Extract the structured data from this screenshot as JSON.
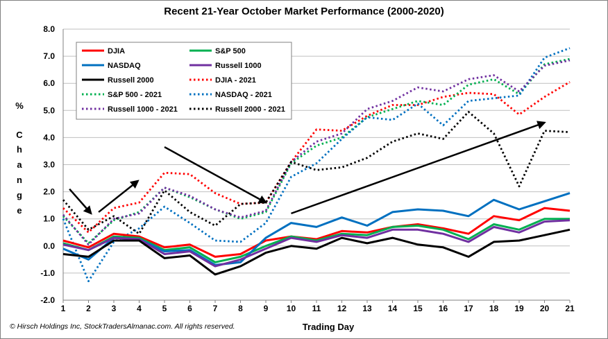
{
  "chart_data": {
    "type": "line",
    "title": "Recent 21-Year October Market Performance (2000-2020)",
    "xlabel": "Trading Day",
    "ylabel_letters": [
      "%",
      "C",
      "h",
      "a",
      "n",
      "g",
      "e"
    ],
    "x": [
      "1",
      "2",
      "3",
      "4",
      "5",
      "6",
      "7",
      "8",
      "9",
      "10",
      "11",
      "12",
      "13",
      "14",
      "15",
      "16",
      "17",
      "18",
      "19",
      "20",
      "21"
    ],
    "ylim": [
      -2.0,
      8.0
    ],
    "yticks": [
      "-2.0",
      "-1.0",
      "0.0",
      "1.0",
      "2.0",
      "3.0",
      "4.0",
      "5.0",
      "6.0",
      "7.0",
      "8.0"
    ],
    "grid": true,
    "legend_position": "top-left",
    "copyright": "© Hirsch Holdings Inc, StockTradersAlmanac.com.  All rights reserved.",
    "series": [
      {
        "name": "DJIA",
        "color": "#ff0000",
        "style": "solid",
        "values": [
          0.2,
          -0.05,
          0.45,
          0.35,
          -0.05,
          0.05,
          -0.4,
          -0.3,
          0.2,
          0.35,
          0.25,
          0.55,
          0.5,
          0.7,
          0.8,
          0.65,
          0.45,
          1.1,
          0.95,
          1.4,
          1.3
        ]
      },
      {
        "name": "S&P 500",
        "color": "#00b050",
        "style": "solid",
        "values": [
          0.1,
          -0.15,
          0.35,
          0.3,
          -0.15,
          -0.05,
          -0.6,
          -0.4,
          0.0,
          0.35,
          0.2,
          0.45,
          0.4,
          0.7,
          0.75,
          0.6,
          0.25,
          0.8,
          0.6,
          1.0,
          1.0
        ]
      },
      {
        "name": "NASDAQ",
        "color": "#0070c0",
        "style": "solid",
        "values": [
          -0.1,
          -0.5,
          0.3,
          0.25,
          -0.2,
          -0.15,
          -0.7,
          -0.6,
          0.3,
          0.85,
          0.7,
          1.05,
          0.75,
          1.25,
          1.35,
          1.3,
          1.1,
          1.7,
          1.35,
          1.65,
          1.95
        ]
      },
      {
        "name": "Russell 1000",
        "color": "#7030a0",
        "style": "solid",
        "values": [
          0.05,
          -0.15,
          0.3,
          0.25,
          -0.3,
          -0.2,
          -0.75,
          -0.5,
          -0.1,
          0.3,
          0.15,
          0.4,
          0.3,
          0.6,
          0.6,
          0.45,
          0.15,
          0.7,
          0.5,
          0.9,
          0.95
        ]
      },
      {
        "name": "Russell 2000",
        "color": "#000000",
        "style": "solid",
        "values": [
          -0.3,
          -0.4,
          0.2,
          0.2,
          -0.45,
          -0.35,
          -1.05,
          -0.75,
          -0.25,
          0.0,
          -0.1,
          0.3,
          0.1,
          0.3,
          0.05,
          -0.05,
          -0.4,
          0.15,
          0.2,
          0.4,
          0.6
        ]
      },
      {
        "name": "DJIA - 2021",
        "color": "#ff0000",
        "style": "dotted",
        "values": [
          1.4,
          0.5,
          1.4,
          1.6,
          2.7,
          2.65,
          1.95,
          1.55,
          1.6,
          3.1,
          4.3,
          4.25,
          4.8,
          5.2,
          5.2,
          5.5,
          5.65,
          5.6,
          4.85,
          5.5,
          6.05
        ]
      },
      {
        "name": "S&P 500 - 2021",
        "color": "#00b050",
        "style": "dotted",
        "values": [
          1.1,
          0.1,
          0.95,
          1.25,
          2.15,
          1.8,
          1.35,
          1.0,
          1.25,
          3.05,
          3.7,
          4.0,
          4.75,
          5.05,
          5.35,
          5.2,
          5.95,
          6.15,
          5.6,
          6.7,
          6.9
        ]
      },
      {
        "name": "NASDAQ - 2021",
        "color": "#0070c0",
        "style": "dotted",
        "values": [
          1.0,
          -1.3,
          0.15,
          0.65,
          1.45,
          0.85,
          0.2,
          0.15,
          0.85,
          2.55,
          3.05,
          3.95,
          4.75,
          4.65,
          5.25,
          4.45,
          5.35,
          5.45,
          5.55,
          6.95,
          7.3
        ]
      },
      {
        "name": "Russell 1000 - 2021",
        "color": "#7030a0",
        "style": "dotted",
        "values": [
          1.15,
          0.05,
          1.0,
          1.2,
          2.15,
          1.85,
          1.35,
          1.05,
          1.3,
          3.1,
          3.85,
          4.15,
          5.05,
          5.35,
          5.85,
          5.7,
          6.15,
          6.3,
          5.7,
          6.65,
          6.85
        ]
      },
      {
        "name": "Russell 2000 - 2021",
        "color": "#000000",
        "style": "dotted",
        "values": [
          1.7,
          0.6,
          1.1,
          0.45,
          2.05,
          1.25,
          0.75,
          1.55,
          1.6,
          3.1,
          2.8,
          2.9,
          3.25,
          3.85,
          4.15,
          3.95,
          4.95,
          4.15,
          2.2,
          4.25,
          4.2
        ]
      }
    ],
    "legend_layout": [
      [
        "DJIA",
        "S&P 500"
      ],
      [
        "NASDAQ",
        "Russell 1000"
      ],
      [
        "Russell 2000",
        "DJIA - 2021"
      ],
      [
        "S&P 500 - 2021",
        "NASDAQ - 2021"
      ],
      [
        "Russell 1000 - 2021",
        "Russell 2000 - 2021"
      ]
    ],
    "annotations": [
      {
        "type": "arrow",
        "from": [
          1.25,
          2.1
        ],
        "to": [
          2.1,
          1.2
        ]
      },
      {
        "type": "arrow",
        "from": [
          2.4,
          1.25
        ],
        "to": [
          3.95,
          2.4
        ]
      },
      {
        "type": "arrow",
        "from": [
          5.0,
          3.65
        ],
        "to": [
          9.0,
          1.6
        ]
      },
      {
        "type": "arrow",
        "from": [
          10.0,
          1.2
        ],
        "to": [
          20.0,
          4.55
        ]
      }
    ]
  }
}
